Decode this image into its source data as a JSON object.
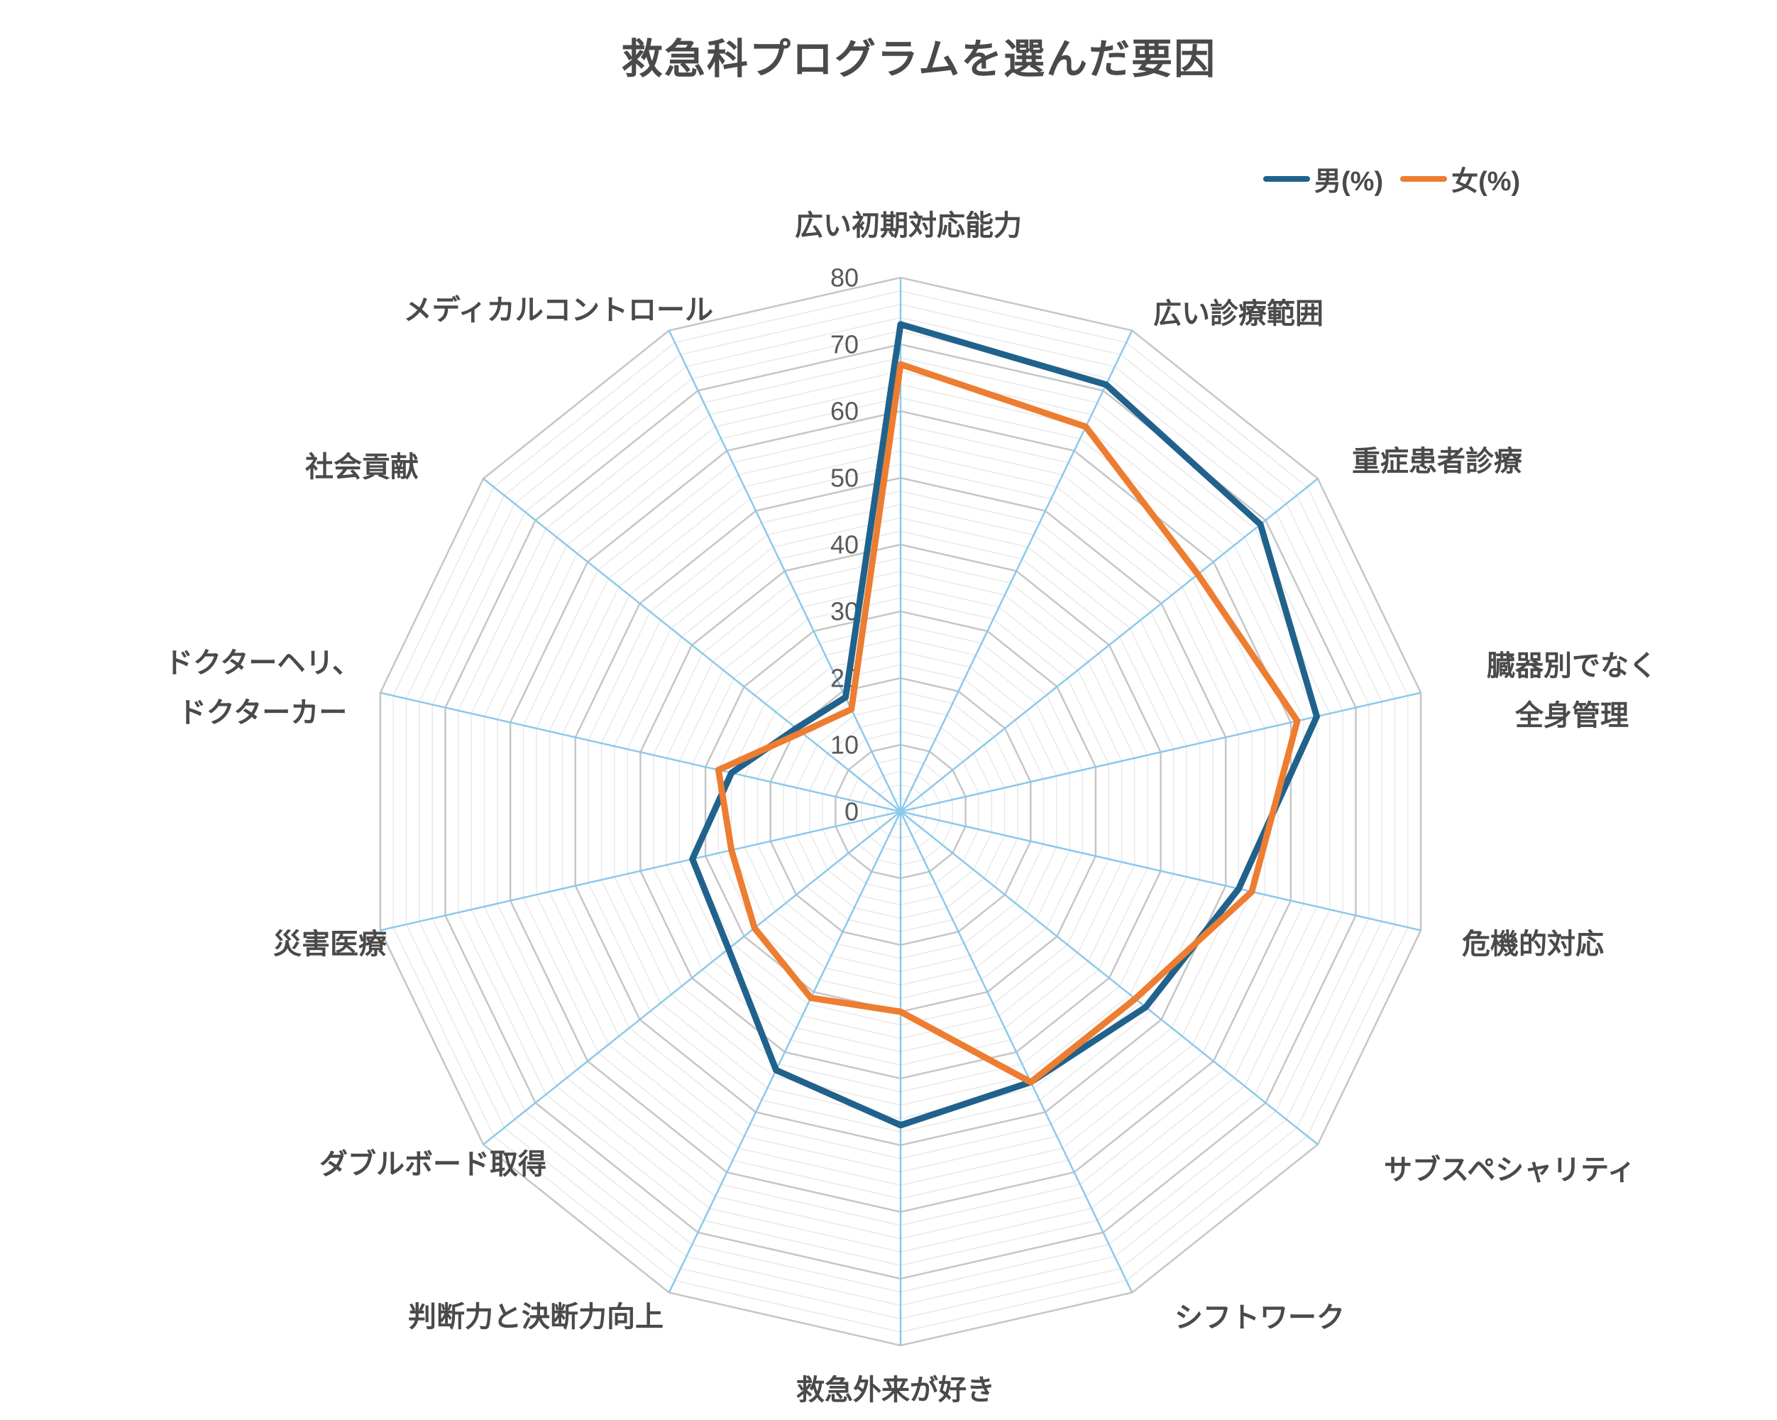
{
  "title": "救急科プログラムを選んだ要因",
  "legend": [
    {
      "label": "男(%)",
      "color": "#20628C"
    },
    {
      "label": "女(%)",
      "color": "#ED7D31"
    }
  ],
  "chart_data": {
    "type": "radar",
    "title": "救急科プログラムを選んだ要因",
    "categories": [
      "広い初期対応能力",
      "広い診療範囲",
      "重症患者診療",
      "臓器別でなく\n全身管理",
      "危機的対応",
      "サブスペシャリティ",
      "シフトワーク",
      "救急外来が好き",
      "判断力と決断力向上",
      "ダブルボード取得",
      "災害医療",
      "ドクターヘリ、\nドクターカー",
      "社会貢献",
      "メディカルコントロール"
    ],
    "series": [
      {
        "name": "男(%)",
        "color": "#20628C",
        "values": [
          73,
          71,
          69,
          64,
          52,
          47,
          45,
          47,
          43,
          33,
          32,
          26,
          20,
          19
        ]
      },
      {
        "name": "女(%)",
        "color": "#ED7D31",
        "values": [
          67,
          64,
          57,
          61,
          54,
          45,
          45,
          30,
          31,
          28,
          26,
          28,
          19,
          17
        ]
      }
    ],
    "r_axis": {
      "min": 0,
      "max": 80,
      "major_step": 10,
      "minor_step": 2,
      "tick_labels": [
        "0",
        "10",
        "20",
        "30",
        "40",
        "50",
        "60",
        "70",
        "80"
      ]
    },
    "legend_position": "top-right",
    "grid": {
      "shape": "polygon",
      "spoke_color": "#8CC9EB",
      "major_ring_color": "#C6C6C6",
      "minor_ring_color": "#E9E9E9",
      "category_label_color": "#4A4A4A",
      "tick_label_color": "#595959"
    }
  }
}
